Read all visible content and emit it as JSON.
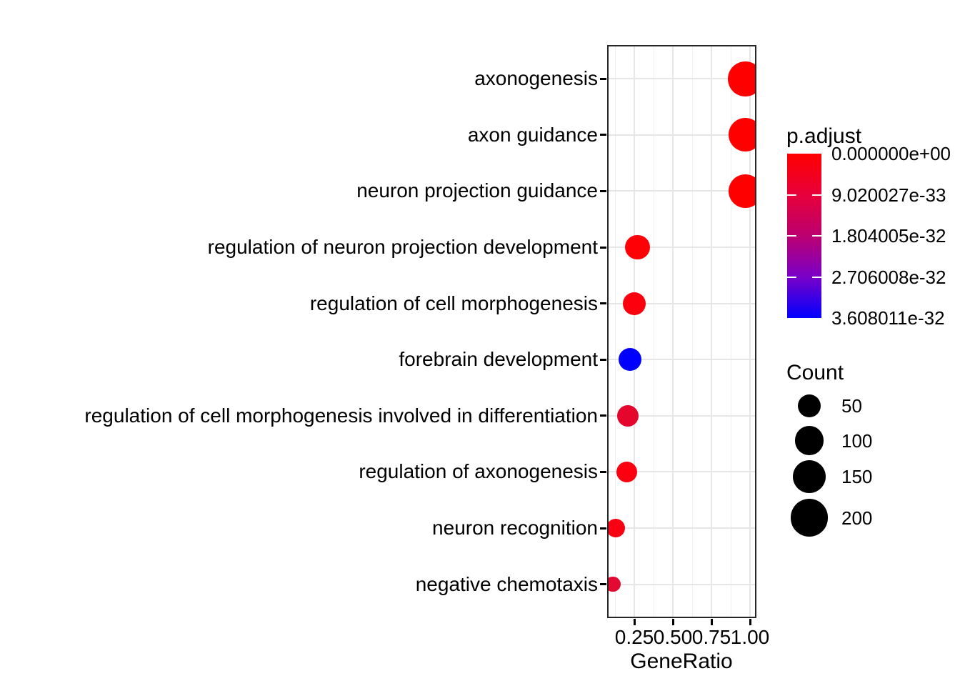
{
  "chart_data": {
    "type": "scatter",
    "title": "",
    "xlabel": "GeneRatio",
    "ylabel": "",
    "grid": "on",
    "x_tick_labels": [
      "0.25",
      "0.50",
      "0.75",
      "1.00"
    ],
    "x_tick_values": [
      0.25,
      0.5,
      0.75,
      1.0
    ],
    "x_minor_gridlines": [
      0.125,
      0.375,
      0.625,
      0.875
    ],
    "xlim": [
      0.074,
      1.042
    ],
    "points": [
      {
        "label": "axonogenesis",
        "gene_ratio": 0.97,
        "count": 170,
        "p_adjust_est": "~0",
        "color": "#FF0000"
      },
      {
        "label": "axon guidance",
        "gene_ratio": 0.97,
        "count": 155,
        "p_adjust_est": "~0",
        "color": "#FF0000"
      },
      {
        "label": "neuron projection guidance",
        "gene_ratio": 0.97,
        "count": 152,
        "p_adjust_est": "~0",
        "color": "#FF0000"
      },
      {
        "label": "regulation of neuron projection development",
        "gene_ratio": 0.27,
        "count": 65,
        "p_adjust_est": "~0",
        "color": "#FE0006"
      },
      {
        "label": "regulation of cell morphogenesis",
        "gene_ratio": 0.25,
        "count": 50,
        "p_adjust_est": "~2e-34",
        "color": "#FC000E"
      },
      {
        "label": "forebrain development",
        "gene_ratio": 0.22,
        "count": 50,
        "p_adjust_est": "~3.6e-32",
        "color": "#0000FF"
      },
      {
        "label": "regulation of cell morphogenesis involved in differentiation",
        "gene_ratio": 0.21,
        "count": 40,
        "p_adjust_est": "~4e-33",
        "color": "#E4062D"
      },
      {
        "label": "regulation of axonogenesis",
        "gene_ratio": 0.2,
        "count": 36,
        "p_adjust_est": "~3e-34",
        "color": "#FC0010"
      },
      {
        "label": "neuron recognition",
        "gene_ratio": 0.13,
        "count": 26,
        "p_adjust_est": "~8e-34",
        "color": "#F90113"
      },
      {
        "label": "negative chemotaxis",
        "gene_ratio": 0.11,
        "count": 12,
        "p_adjust_est": "~4e-33",
        "color": "#E20A30"
      }
    ],
    "legend_color": {
      "title": "p.adjust",
      "labels": [
        "0.000000e+00",
        "9.020027e-33",
        "1.804005e-32",
        "2.706008e-32",
        "3.608011e-32"
      ],
      "gradient_stops": [
        "#FF0000",
        "#E7003A",
        "#BC0070",
        "#7A00C8",
        "#0000FF"
      ]
    },
    "legend_size": {
      "title": "Count",
      "labels": [
        "50",
        "100",
        "150",
        "200"
      ],
      "values": [
        50,
        100,
        150,
        200
      ]
    }
  },
  "colors": {
    "background": "#FFFFFF",
    "panel_border": "#262626",
    "grid_major": "#E6E6E6",
    "grid_minor": "#F0F0F0",
    "text": "#000000",
    "axis_tick": "#000000",
    "legend_circle": "#000000"
  }
}
